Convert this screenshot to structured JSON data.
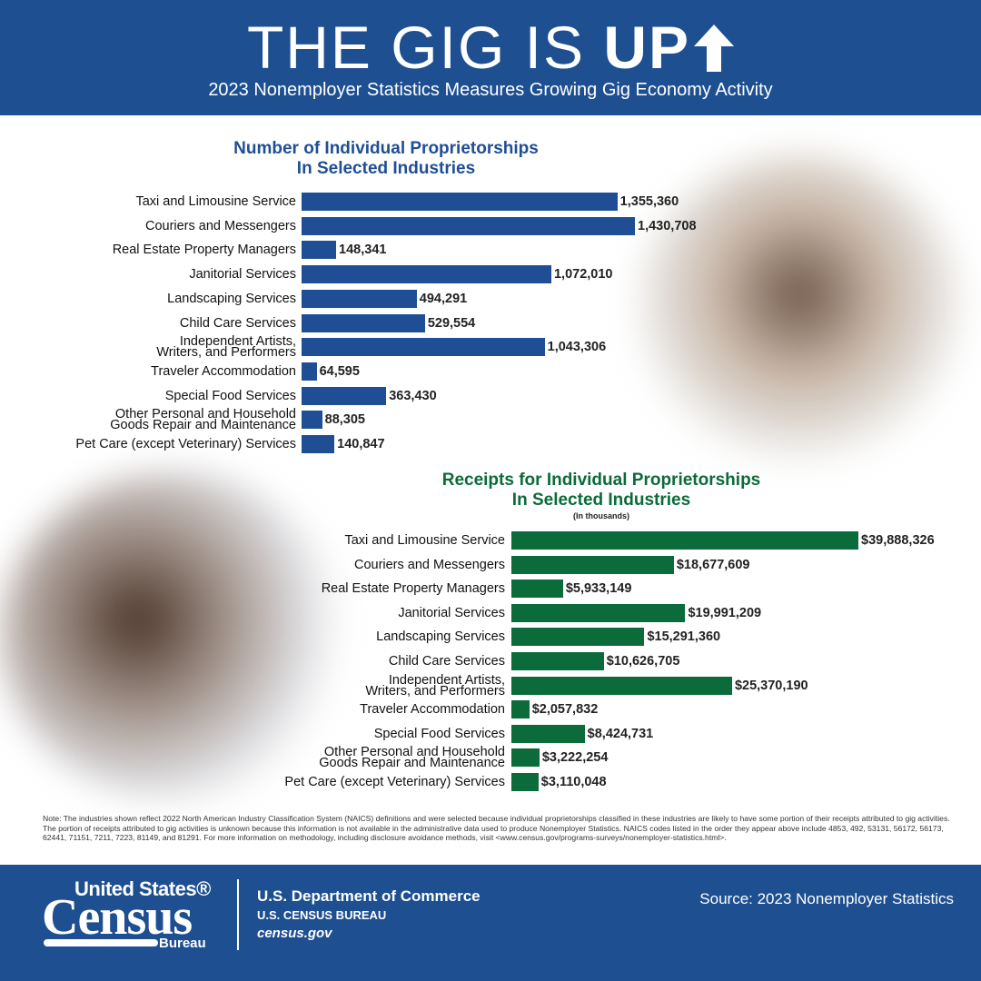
{
  "header": {
    "title_light": "THE GIG IS",
    "title_bold": "UP",
    "subtitle": "2023 Nonemployer Statistics Measures Growing Gig Economy Activity"
  },
  "chart_data": [
    {
      "type": "bar",
      "orientation": "horizontal",
      "title": "Number of Individual Proprietorships\nIn Selected Industries",
      "color": "#1f4e95",
      "categories": [
        "Taxi and Limousine Service",
        "Couriers and Messengers",
        "Real Estate Property Managers",
        "Janitorial Services",
        "Landscaping Services",
        "Child Care Services",
        "Independent Artists,\nWriters, and Performers",
        "Traveler Accommodation",
        "Special Food Services",
        "Other Personal and Household\nGoods Repair and Maintenance",
        "Pet Care (except Veterinary) Services"
      ],
      "values": [
        1355360,
        1430708,
        148341,
        1072010,
        494291,
        529554,
        1043306,
        64595,
        363430,
        88305,
        140847
      ],
      "value_labels": [
        "1,355,360",
        "1,430,708",
        "148,341",
        "1,072,010",
        "494,291",
        "529,554",
        "1,043,306",
        "64,595",
        "363,430",
        "88,305",
        "140,847"
      ]
    },
    {
      "type": "bar",
      "orientation": "horizontal",
      "title": "Receipts for Individual Proprietorships\nIn Selected Industries",
      "subtitle": "(In thousands)",
      "color": "#0b6b3a",
      "categories": [
        "Taxi and Limousine Service",
        "Couriers and Messengers",
        "Real Estate Property Managers",
        "Janitorial Services",
        "Landscaping Services",
        "Child Care Services",
        "Independent Artists,\nWriters, and Performers",
        "Traveler Accommodation",
        "Special Food Services",
        "Other Personal and Household\nGoods Repair and Maintenance",
        "Pet Care (except Veterinary) Services"
      ],
      "values": [
        39888326,
        18677609,
        5933149,
        19991209,
        15291360,
        10626705,
        25370190,
        2057832,
        8424731,
        3222254,
        3110048
      ],
      "value_labels": [
        "$39,888,326",
        "$18,677,609",
        "$5,933,149",
        "$19,991,209",
        "$15,291,360",
        "$10,626,705",
        "$25,370,190",
        "$2,057,832",
        "$8,424,731",
        "$3,222,254",
        "$3,110,048"
      ]
    }
  ],
  "note": "Note: The industries shown reflect 2022 North American Industry Classification System (NAICS) definitions and were selected because individual proprietorships classified in these industries are likely to have some portion of their receipts attributed to gig activities. The portion of receipts attributed to gig activities is unknown because this information is not available in the administrative data used to produce Nonemployer Statistics. NAICS codes listed in the order they appear above include 4853, 492, 53131, 56172, 56173, 62441, 71151, 7211, 7223, 81149, and 81291. For more information on methodology, including disclosure avoidance methods, visit <www.census.gov/programs-surveys/nonemployer-statistics.html>.",
  "footer": {
    "logo_top": "United States®",
    "logo_main": "Census",
    "logo_bottom": "Bureau",
    "dept": "U.S. Department of Commerce",
    "bureau": "U.S. CENSUS BUREAU",
    "site": "census.gov",
    "source": "Source: 2023 Nonemployer Statistics"
  }
}
